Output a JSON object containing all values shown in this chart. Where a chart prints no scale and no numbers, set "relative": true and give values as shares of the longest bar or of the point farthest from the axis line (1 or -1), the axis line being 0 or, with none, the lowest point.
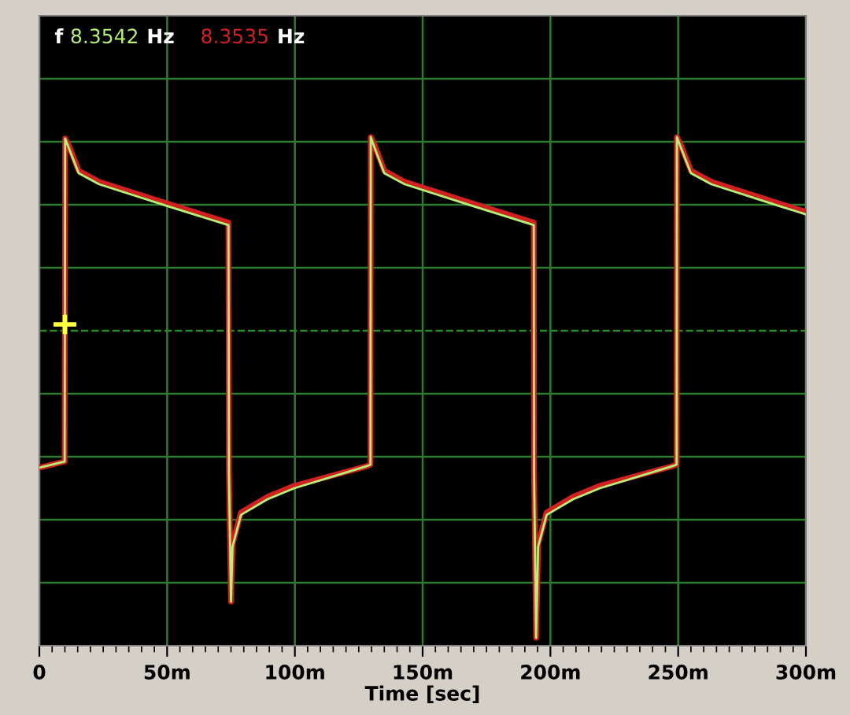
{
  "chart_data": {
    "type": "line",
    "relative": true,
    "xlabel": "Time [sec]",
    "xlim": [
      0,
      300
    ],
    "xticks": [
      0,
      {
        "value": 50,
        "label": "50m"
      },
      {
        "value": 100,
        "label": "100m"
      },
      {
        "value": 150,
        "label": "150m"
      },
      {
        "value": 200,
        "label": "200m"
      },
      {
        "value": 250,
        "label": "250m"
      },
      {
        "value": 300,
        "label": "300m"
      }
    ],
    "grid": true,
    "legend": "top left",
    "marker": "none",
    "line_style": "solid",
    "annotations": [
      "f",
      "Hz",
      "Hz"
    ],
    "ref_lines": [
      {
        "axis": "y",
        "value": 0,
        "color": "#2a8a2a",
        "line_style": "dashed"
      }
    ],
    "series": [
      {
        "name": "8.3535",
        "color": "#d02020",
        "x": [
          0,
          9.9,
          10.1,
          11.3,
          15.4,
          23.4,
          50.5,
          74.0,
          74.2,
          75.0,
          75.6,
          78.9,
          89.3,
          99.8,
          128.2,
          129.6,
          129.7,
          131.0,
          135.0,
          143.0,
          170.1,
          193.5,
          193.6,
          194.4,
          195.2,
          198.5,
          208.9,
          219.4,
          247.8,
          249.4,
          249.5,
          250.9,
          255.0,
          263.0,
          290.0,
          300.0
        ],
        "values": [
          -0.446,
          -0.426,
          0.626,
          0.608,
          0.521,
          0.485,
          0.413,
          0.352,
          -0.462,
          -0.882,
          -0.695,
          -0.592,
          -0.541,
          -0.505,
          -0.441,
          -0.436,
          0.631,
          0.608,
          0.521,
          0.485,
          0.413,
          0.352,
          -0.462,
          -1.0,
          -0.695,
          -0.592,
          -0.541,
          -0.505,
          -0.441,
          -0.436,
          0.631,
          0.608,
          0.521,
          0.485,
          0.413,
          0.387
        ]
      },
      {
        "name": "8.3542",
        "color": "#b4f078",
        "x": [
          0,
          9.9,
          10.1,
          11.3,
          15.4,
          23.4,
          50.5,
          74.0,
          74.2,
          75.0,
          75.6,
          78.9,
          89.3,
          99.8,
          128.2,
          129.6,
          129.7,
          131.0,
          135.0,
          143.0,
          170.1,
          193.5,
          193.6,
          194.4,
          195.2,
          198.5,
          208.9,
          219.4,
          247.8,
          249.4,
          249.5,
          250.9,
          255.0,
          263.0,
          290.0,
          300.0
        ],
        "values": [
          -0.446,
          -0.426,
          0.626,
          0.6,
          0.513,
          0.477,
          0.405,
          0.344,
          -0.462,
          -0.882,
          -0.703,
          -0.6,
          -0.549,
          -0.513,
          -0.441,
          -0.436,
          0.631,
          0.6,
          0.513,
          0.477,
          0.405,
          0.344,
          -0.462,
          -1.0,
          -0.703,
          -0.6,
          -0.549,
          -0.513,
          -0.441,
          -0.436,
          0.631,
          0.6,
          0.513,
          0.477,
          0.405,
          0.379
        ]
      }
    ]
  }
}
